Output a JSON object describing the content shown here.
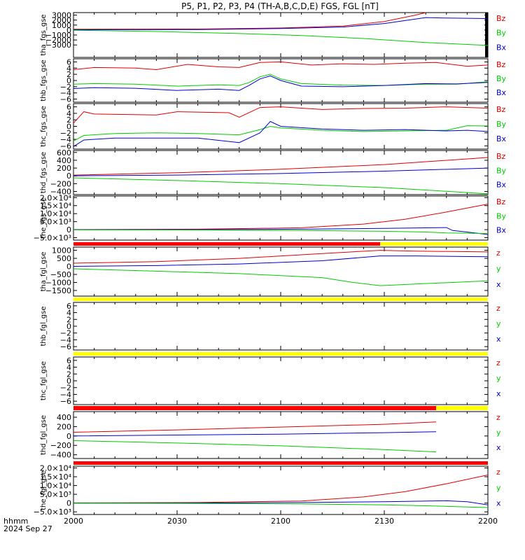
{
  "title": "P5, P1, P2, P3, P4 (TH-A,B,C,D,E) FGS, FGL [nT]",
  "footer": {
    "time_label": "hhmm",
    "date_label": "2024 Sep 27"
  },
  "x_axis": {
    "ticks": [
      "2000",
      "2030",
      "2100",
      "2130",
      "2200"
    ]
  },
  "chart_data": [
    {
      "type": "line",
      "ylabel": "tha_fgs_gse",
      "ylim": [
        -5500,
        3500
      ],
      "yticks": [
        "3000",
        "2000",
        "1000",
        "0",
        "−1000",
        "−2000",
        "−3000"
      ],
      "ytick_values": [
        3000,
        2000,
        1000,
        0,
        -1000,
        -2000,
        -3000
      ],
      "legend": [
        "Bz",
        "By",
        "Bx"
      ],
      "right_edge_bar": true,
      "series": [
        {
          "name": "Bz",
          "color": "#dd0000",
          "x": [
            0,
            60,
            100,
            130,
            150,
            165,
            170
          ],
          "y": [
            150,
            200,
            400,
            800,
            1700,
            3000,
            3500
          ]
        },
        {
          "name": "Bx",
          "color": "#0000cc",
          "x": [
            0,
            60,
            100,
            130,
            150,
            165,
            170,
            180,
            200
          ],
          "y": [
            50,
            100,
            300,
            600,
            1300,
            2200,
            2500,
            2400,
            2300
          ]
        },
        {
          "name": "By",
          "color": "#00cc00",
          "x": [
            0,
            40,
            80,
            110,
            140,
            170,
            200
          ],
          "y": [
            -50,
            -300,
            -700,
            -1100,
            -1700,
            -2500,
            -3100
          ]
        }
      ]
    },
    {
      "type": "line",
      "ylabel": "thb_fgs_gse",
      "ylim": [
        -7,
        7
      ],
      "yticks": [
        "6",
        "4",
        "2",
        "0",
        "−2",
        "−4",
        "−6"
      ],
      "ytick_values": [
        6,
        4,
        2,
        0,
        -2,
        -4,
        -6
      ],
      "legend": [
        "Bz",
        "By",
        "Bx"
      ],
      "series": [
        {
          "name": "Bz",
          "color": "#dd0000",
          "x": [
            0,
            10,
            30,
            40,
            55,
            70,
            80,
            90,
            100,
            115,
            130,
            145,
            160,
            175,
            190,
            200
          ],
          "y": [
            3.5,
            4.2,
            4,
            3.5,
            5.2,
            4.4,
            4.2,
            5.8,
            6,
            5,
            5.4,
            5.2,
            5.6,
            5.8,
            4.6,
            5
          ]
        },
        {
          "name": "By",
          "color": "#00cc00",
          "x": [
            0,
            10,
            30,
            50,
            70,
            80,
            85,
            90,
            95,
            100,
            110,
            130,
            150,
            170,
            185,
            200
          ],
          "y": [
            -1.2,
            -1,
            -1.2,
            -1.8,
            -1.4,
            -1.6,
            -0.6,
            1.2,
            2,
            0.5,
            -1,
            -1.5,
            -1.6,
            -1.2,
            -1.2,
            -0.4
          ]
        },
        {
          "name": "Bx",
          "color": "#0000cc",
          "x": [
            0,
            10,
            30,
            50,
            70,
            80,
            85,
            90,
            95,
            100,
            110,
            130,
            150,
            170,
            185,
            200
          ],
          "y": [
            -2.6,
            -2.3,
            -2.5,
            -3.2,
            -2.8,
            -3.2,
            -1.5,
            0.5,
            1.5,
            0,
            -1.8,
            -2,
            -1.6,
            -1,
            -1.1,
            -0.6
          ]
        }
      ]
    },
    {
      "type": "line",
      "ylabel": "thc_fgs_gse",
      "ylim": [
        -7,
        7
      ],
      "yticks": [
        "6",
        "4",
        "2",
        "0",
        "−2",
        "−4",
        "−6"
      ],
      "ytick_values": [
        6,
        4,
        2,
        0,
        -2,
        -4,
        -6
      ],
      "legend": [
        "Bz",
        "By",
        "Bx"
      ],
      "series": [
        {
          "name": "Bz",
          "color": "#dd0000",
          "x": [
            0,
            5,
            10,
            40,
            50,
            75,
            80,
            90,
            100,
            120,
            140,
            160,
            180,
            200
          ],
          "y": [
            1,
            4.5,
            3.8,
            3.5,
            4.5,
            4.2,
            2.8,
            5.8,
            6,
            5.2,
            5.5,
            5.6,
            6,
            5.6
          ]
        },
        {
          "name": "By",
          "color": "#00cc00",
          "x": [
            0,
            5,
            20,
            40,
            60,
            80,
            90,
            95,
            100,
            120,
            140,
            160,
            180,
            190,
            200
          ],
          "y": [
            -4.5,
            -2.8,
            -2.2,
            -2,
            -2.2,
            -2.6,
            -1,
            0,
            -0.5,
            -1.2,
            -1.6,
            -1.4,
            -1.2,
            0.2,
            0.1
          ]
        },
        {
          "name": "Bx",
          "color": "#0000cc",
          "x": [
            0,
            5,
            20,
            40,
            60,
            80,
            90,
            95,
            100,
            120,
            140,
            160,
            180,
            190,
            200
          ],
          "y": [
            -6.2,
            -4.2,
            -3.6,
            -3.6,
            -3.6,
            -5,
            -2,
            1.5,
            0,
            -0.8,
            -1.2,
            -1,
            -1.4,
            -1.2,
            -1.6
          ]
        }
      ]
    },
    {
      "type": "line",
      "ylabel": "thd_fgs_gse",
      "ylim": [
        -480,
        650
      ],
      "yticks": [
        "600",
        "400",
        "200",
        "0",
        "−200",
        "−400"
      ],
      "ytick_values": [
        600,
        400,
        200,
        0,
        -200,
        -400
      ],
      "legend": [
        "Bz",
        "By",
        "Bx"
      ],
      "series": [
        {
          "name": "Bz",
          "color": "#dd0000",
          "x": [
            0,
            50,
            100,
            150,
            200
          ],
          "y": [
            20,
            80,
            170,
            290,
            470
          ]
        },
        {
          "name": "Bx",
          "color": "#0000cc",
          "x": [
            0,
            50,
            100,
            150,
            200
          ],
          "y": [
            0,
            20,
            60,
            120,
            200
          ]
        },
        {
          "name": "By",
          "color": "#00cc00",
          "x": [
            0,
            50,
            100,
            150,
            175,
            200
          ],
          "y": [
            -50,
            -120,
            -200,
            -300,
            -380,
            -460
          ]
        }
      ]
    },
    {
      "type": "line",
      "ylabel": "the_fgs_gse",
      "ylim": [
        -6500,
        21000
      ],
      "yticks": [
        "2.0×10⁴",
        "1.5×10⁴",
        "1.0×10⁴",
        "5.0×10³",
        "0",
        "−5.0×10³"
      ],
      "ytick_values": [
        20000,
        15000,
        10000,
        5000,
        0,
        -5000
      ],
      "legend": [
        "Bz",
        "By",
        "Bx"
      ],
      "series": [
        {
          "name": "Bz",
          "color": "#dd0000",
          "x": [
            0,
            60,
            110,
            140,
            160,
            180,
            200
          ],
          "y": [
            100,
            300,
            1200,
            3500,
            6500,
            11000,
            16000
          ]
        },
        {
          "name": "Bx",
          "color": "#0000cc",
          "x": [
            0,
            60,
            110,
            150,
            180,
            183,
            190,
            200
          ],
          "y": [
            0,
            50,
            300,
            800,
            1300,
            -500,
            -1500,
            -3000
          ]
        },
        {
          "name": "By",
          "color": "#00cc00",
          "x": [
            0,
            60,
            110,
            150,
            170,
            180,
            190,
            200
          ],
          "y": [
            -100,
            -200,
            -500,
            -1000,
            -1500,
            -2000,
            -2200,
            -2500
          ]
        }
      ]
    },
    {
      "type": "line",
      "ylabel": "tha_fgl_gse",
      "ylim": [
        -1850,
        1200
      ],
      "yticks": [
        "1000",
        "500",
        "0",
        "−500",
        "−1000",
        "−1500"
      ],
      "ytick_values": [
        1000,
        500,
        0,
        -500,
        -1000,
        -1500
      ],
      "legend": [
        "z",
        "y",
        "x"
      ],
      "bar": {
        "segments": [
          {
            "from": 0,
            "to": 148,
            "color": "#ff0000"
          },
          {
            "from": 148,
            "to": 200,
            "color": "#ffff00"
          }
        ]
      },
      "series": [
        {
          "name": "z",
          "color": "#dd0000",
          "x": [
            0,
            40,
            80,
            120,
            148,
            165,
            200
          ],
          "y": [
            200,
            300,
            500,
            800,
            1000,
            950,
            900
          ]
        },
        {
          "name": "x",
          "color": "#0000cc",
          "x": [
            0,
            40,
            80,
            120,
            148,
            165,
            200
          ],
          "y": [
            0,
            50,
            150,
            350,
            650,
            650,
            600
          ]
        },
        {
          "name": "y",
          "color": "#00cc00",
          "x": [
            0,
            40,
            80,
            120,
            135,
            148,
            165,
            200
          ],
          "y": [
            -150,
            -300,
            -450,
            -700,
            -1000,
            -1200,
            -1100,
            -900
          ]
        }
      ]
    },
    {
      "type": "line",
      "ylabel": "thb_fgl_gse",
      "ylim": [
        -7,
        7
      ],
      "yticks": [
        "6",
        "4",
        "2",
        "0",
        "−2",
        "−4",
        "−6"
      ],
      "ytick_values": [
        6,
        4,
        2,
        0,
        -2,
        -4,
        -6
      ],
      "legend": [
        "z",
        "y",
        "x"
      ],
      "bar": {
        "segments": [
          {
            "from": 0,
            "to": 200,
            "color": "#ffff00"
          }
        ]
      },
      "series": []
    },
    {
      "type": "line",
      "ylabel": "thc_fgl_gse",
      "ylim": [
        -7,
        7
      ],
      "yticks": [
        "6",
        "4",
        "2",
        "0",
        "−2",
        "−4",
        "−6"
      ],
      "ytick_values": [
        6,
        4,
        2,
        0,
        -2,
        -4,
        -6
      ],
      "legend": [
        "z",
        "y",
        "x"
      ],
      "bar": {
        "segments": [
          {
            "from": 0,
            "to": 200,
            "color": "#ffff00"
          }
        ]
      },
      "series": []
    },
    {
      "type": "line",
      "ylabel": "thd_fgl_gse",
      "ylim": [
        -480,
        520
      ],
      "yticks": [
        "400",
        "200",
        "0",
        "−200",
        "−400"
      ],
      "ytick_values": [
        400,
        200,
        0,
        -200,
        -400
      ],
      "legend": [
        "z",
        "y",
        "x"
      ],
      "bar": {
        "segments": [
          {
            "from": 0,
            "to": 175,
            "color": "#ff0000"
          },
          {
            "from": 175,
            "to": 200,
            "color": "#ffff00"
          }
        ]
      },
      "series": [
        {
          "name": "z",
          "color": "#dd0000",
          "x": [
            0,
            50,
            100,
            150,
            175
          ],
          "y": [
            80,
            130,
            190,
            250,
            300
          ]
        },
        {
          "name": "x",
          "color": "#0000cc",
          "x": [
            0,
            50,
            100,
            150,
            175
          ],
          "y": [
            0,
            20,
            40,
            70,
            90
          ]
        },
        {
          "name": "y",
          "color": "#00cc00",
          "x": [
            0,
            50,
            100,
            150,
            175
          ],
          "y": [
            -100,
            -150,
            -210,
            -290,
            -340
          ]
        }
      ]
    },
    {
      "type": "line",
      "ylabel": "the_fgl_gse",
      "ylim": [
        -6500,
        21000
      ],
      "yticks": [
        "2.0×10⁴",
        "1.5×10⁴",
        "1.0×10⁴",
        "5.0×10³",
        "0",
        "−5.0×10³"
      ],
      "ytick_values": [
        20000,
        15000,
        10000,
        5000,
        0,
        -5000
      ],
      "legend": [
        "z",
        "y",
        "x"
      ],
      "bar": {
        "segments": [
          {
            "from": 0,
            "to": 200,
            "color": "#ff0000"
          }
        ]
      },
      "series": [
        {
          "name": "z",
          "color": "#dd0000",
          "x": [
            0,
            60,
            110,
            140,
            160,
            180,
            200
          ],
          "y": [
            100,
            300,
            1200,
            3500,
            6500,
            11000,
            16000
          ]
        },
        {
          "name": "x",
          "color": "#0000cc",
          "x": [
            0,
            60,
            110,
            150,
            180,
            190,
            200
          ],
          "y": [
            0,
            50,
            300,
            800,
            1300,
            800,
            -1000
          ]
        },
        {
          "name": "y",
          "color": "#00cc00",
          "x": [
            0,
            60,
            110,
            150,
            170,
            190,
            200
          ],
          "y": [
            -100,
            -200,
            -500,
            -1000,
            -1500,
            -2200,
            -2500
          ]
        }
      ]
    }
  ]
}
